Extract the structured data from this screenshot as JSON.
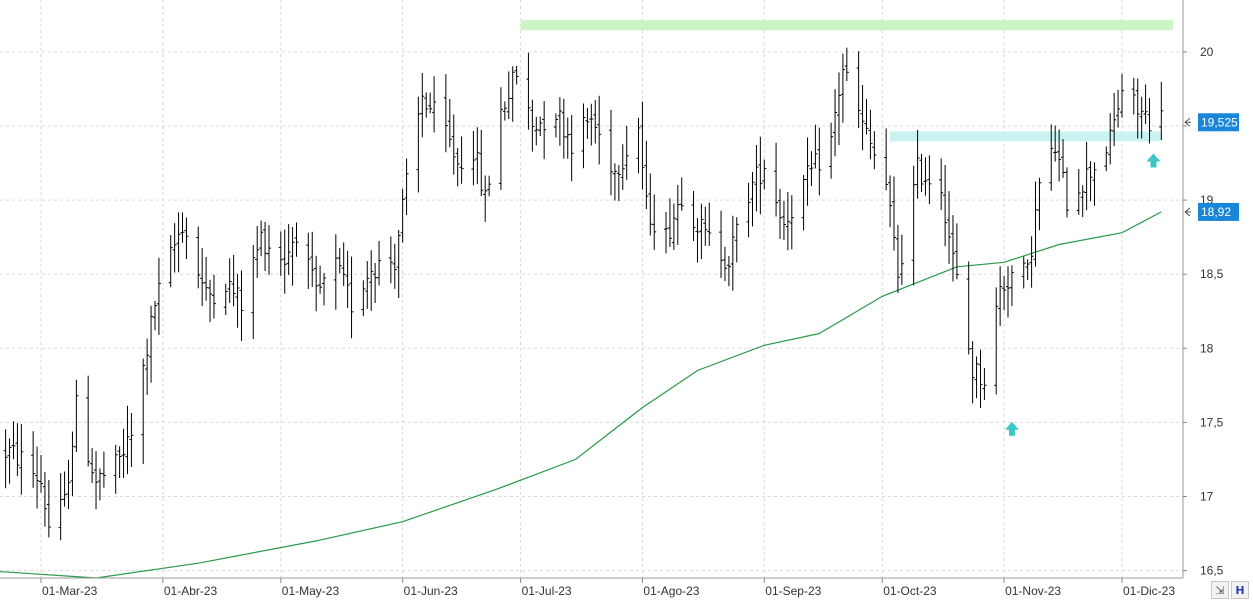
{
  "chart_data": {
    "type": "ohlc",
    "x_tick_labels": [
      "01-Mar-23",
      "01-Abr-23",
      "01-May-23",
      "01-Jun-23",
      "01-Jul-23",
      "01-Ago-23",
      "01-Sep-23",
      "01-Oct-23",
      "01-Nov-23",
      "01-Dic-23"
    ],
    "y_ticks": [
      {
        "value": 16.5,
        "label": "16,5"
      },
      {
        "value": 17,
        "label": "17"
      },
      {
        "value": 17.5,
        "label": "17,5"
      },
      {
        "value": 18,
        "label": "18"
      },
      {
        "value": 18.5,
        "label": "18,5"
      },
      {
        "value": 19,
        "label": "19"
      },
      {
        "value": 19.5,
        "label": "19,5"
      },
      {
        "value": 20,
        "label": "20"
      }
    ],
    "ylim": [
      16.45,
      20.35
    ],
    "grid": true,
    "bar_color": "#000000",
    "price_anchors": [
      [
        "2023-02-21",
        17.3
      ],
      [
        "2023-02-24",
        17.25
      ],
      [
        "2023-03-01",
        17.1
      ],
      [
        "2023-03-03",
        16.8
      ],
      [
        "2023-03-07",
        16.95
      ],
      [
        "2023-03-10",
        17.6
      ],
      [
        "2023-03-15",
        17.1
      ],
      [
        "2023-03-20",
        17.2
      ],
      [
        "2023-03-24",
        17.4
      ],
      [
        "2023-03-30",
        18.3
      ],
      [
        "2023-04-06",
        18.85
      ],
      [
        "2023-04-12",
        18.35
      ],
      [
        "2023-04-17",
        18.45
      ],
      [
        "2023-04-21",
        18.3
      ],
      [
        "2023-04-26",
        18.75
      ],
      [
        "2023-05-02",
        18.6
      ],
      [
        "2023-05-05",
        18.8
      ],
      [
        "2023-05-10",
        18.35
      ],
      [
        "2023-05-15",
        18.55
      ],
      [
        "2023-05-19",
        18.3
      ],
      [
        "2023-05-24",
        18.55
      ],
      [
        "2023-05-30",
        18.6
      ],
      [
        "2023-06-01",
        18.95
      ],
      [
        "2023-06-06",
        19.7
      ],
      [
        "2023-06-12",
        19.45
      ],
      [
        "2023-06-15",
        19.25
      ],
      [
        "2023-06-19",
        19.35
      ],
      [
        "2023-06-22",
        19.0
      ],
      [
        "2023-06-26",
        19.6
      ],
      [
        "2023-06-30",
        19.85
      ],
      [
        "2023-07-04",
        19.5
      ],
      [
        "2023-07-10",
        19.6
      ],
      [
        "2023-07-14",
        19.4
      ],
      [
        "2023-07-19",
        19.55
      ],
      [
        "2023-07-25",
        19.2
      ],
      [
        "2023-07-31",
        19.5
      ],
      [
        "2023-08-02",
        18.95
      ],
      [
        "2023-08-07",
        18.75
      ],
      [
        "2023-08-11",
        19.05
      ],
      [
        "2023-08-17",
        18.75
      ],
      [
        "2023-08-23",
        18.6
      ],
      [
        "2023-08-28",
        19.05
      ],
      [
        "2023-09-01",
        19.25
      ],
      [
        "2023-09-06",
        18.85
      ],
      [
        "2023-09-11",
        19.1
      ],
      [
        "2023-09-18",
        19.4
      ],
      [
        "2023-09-21",
        19.9
      ],
      [
        "2023-09-26",
        19.5
      ],
      [
        "2023-10-02",
        19.1
      ],
      [
        "2023-10-05",
        18.5
      ],
      [
        "2023-10-10",
        19.2
      ],
      [
        "2023-10-16",
        19.1
      ],
      [
        "2023-10-19",
        18.6
      ],
      [
        "2023-10-24",
        17.85
      ],
      [
        "2023-10-27",
        17.8
      ],
      [
        "2023-10-31",
        18.4
      ],
      [
        "2023-11-03",
        18.5
      ],
      [
        "2023-11-07",
        18.5
      ],
      [
        "2023-11-10",
        19.1
      ],
      [
        "2023-11-14",
        19.35
      ],
      [
        "2023-11-17",
        19.0
      ],
      [
        "2023-11-23",
        19.2
      ],
      [
        "2023-11-28",
        19.4
      ],
      [
        "2023-12-01",
        19.75
      ],
      [
        "2023-12-05",
        19.6
      ],
      [
        "2023-12-08",
        19.55
      ],
      [
        "2023-12-11",
        19.55
      ]
    ],
    "moving_average": [
      [
        "2023-02-15",
        16.5
      ],
      [
        "2023-03-15",
        16.45
      ],
      [
        "2023-04-10",
        16.55
      ],
      [
        "2023-05-10",
        16.7
      ],
      [
        "2023-06-01",
        16.83
      ],
      [
        "2023-06-25",
        17.05
      ],
      [
        "2023-07-15",
        17.25
      ],
      [
        "2023-08-01",
        17.6
      ],
      [
        "2023-08-15",
        17.85
      ],
      [
        "2023-09-01",
        18.02
      ],
      [
        "2023-09-15",
        18.1
      ],
      [
        "2023-10-01",
        18.35
      ],
      [
        "2023-10-20",
        18.55
      ],
      [
        "2023-11-01",
        18.58
      ],
      [
        "2023-11-15",
        18.7
      ],
      [
        "2023-12-01",
        18.78
      ],
      [
        "2023-12-11",
        18.92
      ]
    ],
    "moving_average_color": "#2a9a4a",
    "resistance_zones": [
      {
        "x_from": "2023-07-01",
        "x_to": "2023-12-14",
        "y": 20.18,
        "color": "#c8f5c2"
      },
      {
        "x_from": "2023-10-03",
        "x_to": "2023-12-11",
        "y": 19.43,
        "color": "#c9f3f0"
      }
    ],
    "signal_arrows": [
      {
        "date": "2023-11-03",
        "price": 17.45,
        "color": "#3cc6c4"
      },
      {
        "date": "2023-12-09",
        "price": 19.26,
        "color": "#3cc6c4"
      }
    ],
    "price_badges": [
      {
        "value": 19.525,
        "label": "19,525",
        "color": "#1a86d8"
      },
      {
        "value": 18.92,
        "label": "18,92",
        "color": "#1a86d8"
      }
    ]
  },
  "toolbar": {
    "zoom_label": "⇲",
    "save_label": "H"
  }
}
